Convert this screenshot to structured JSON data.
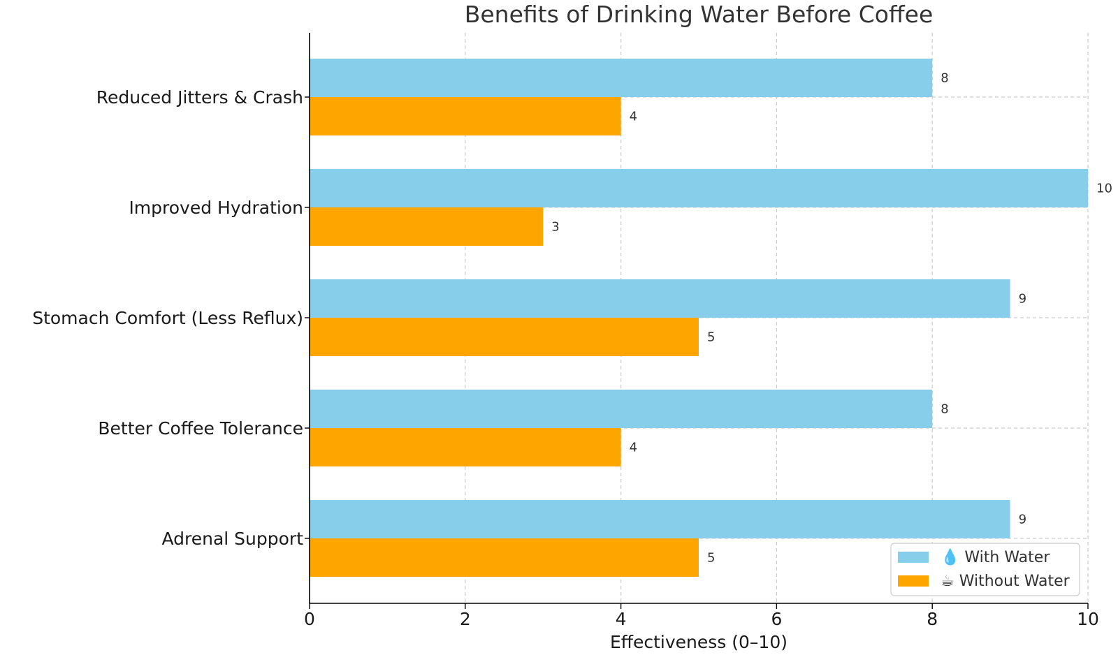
{
  "chart_data": {
    "type": "bar",
    "orientation": "horizontal",
    "title": "Benefits of Drinking Water Before Coffee",
    "xlabel": "Effectiveness (0–10)",
    "ylabel": "",
    "xlim": [
      0,
      10
    ],
    "xticks": [
      "0",
      "2",
      "4",
      "6",
      "8",
      "10"
    ],
    "grid": true,
    "legend_position": "bottom-right",
    "categories": [
      "Reduced Jitters & Crash",
      "Improved Hydration",
      "Stomach Comfort (Less Reflux)",
      "Better Coffee Tolerance",
      "Adrenal Support"
    ],
    "series": [
      {
        "name": "With Water",
        "legend_label": "💧 With Water",
        "color": "#87CEEB",
        "values": [
          8,
          10,
          9,
          8,
          9
        ]
      },
      {
        "name": "Without Water",
        "legend_label": "☕ Without Water",
        "color": "#FFA500",
        "values": [
          4,
          3,
          5,
          4,
          5
        ]
      }
    ]
  }
}
